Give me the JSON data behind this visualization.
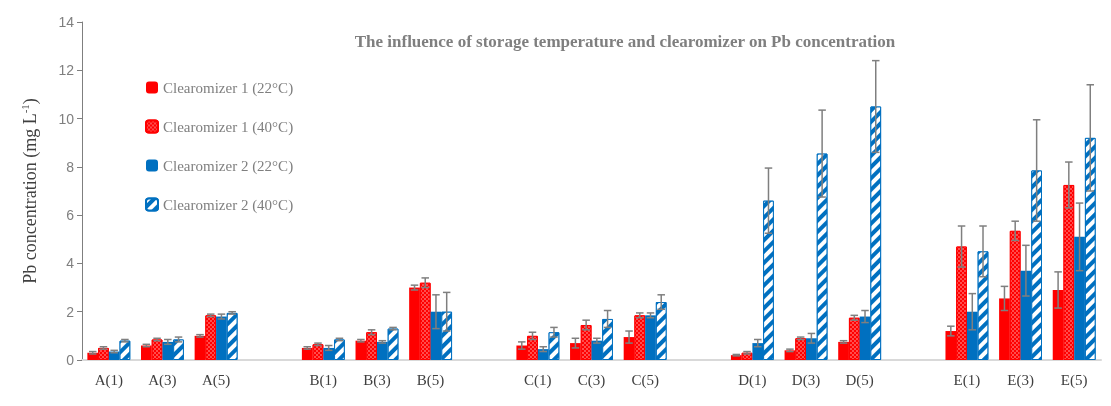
{
  "chart_data": {
    "type": "bar",
    "title": "The influence of storage temperature and clearomizer on Pb concentration",
    "ylabel": "Pb concentration (mg L$^{-1}$)",
    "categories": [
      "A(1)",
      "A(3)",
      "A(5)",
      null,
      "B(1)",
      "B(3)",
      "B(5)",
      null,
      "C(1)",
      "C(3)",
      "C(5)",
      null,
      "D(1)",
      "D(3)",
      "D(5)",
      null,
      "E(1)",
      "E(3)",
      "E(5)"
    ],
    "ylim": [
      0,
      14
    ],
    "yticks": [
      0,
      2,
      4,
      6,
      8,
      10,
      12,
      14
    ],
    "grid": false,
    "legend": "top left",
    "series": [
      {
        "name": "Clearomizer 1 (22°C)",
        "color": "#ff0000",
        "values": [
          0.3,
          0.6,
          1.0,
          null,
          0.5,
          0.8,
          3.0,
          null,
          0.6,
          0.7,
          0.95,
          null,
          0.2,
          0.4,
          0.75,
          null,
          1.2,
          2.55,
          2.9
        ],
        "errors": [
          0.05,
          0.05,
          0.05,
          null,
          0.05,
          0.05,
          0.1,
          null,
          0.15,
          0.2,
          0.25,
          null,
          0.03,
          0.05,
          0.05,
          null,
          0.2,
          0.5,
          0.75
        ]
      },
      {
        "name": "Clearomizer 1 (40°C)",
        "color": "#ff0000",
        "values": [
          0.5,
          0.85,
          1.85,
          null,
          0.65,
          1.15,
          3.2,
          null,
          1.0,
          1.45,
          1.85,
          null,
          0.3,
          0.9,
          1.75,
          null,
          4.7,
          5.35,
          7.25
        ],
        "errors": [
          0.05,
          0.05,
          0.05,
          null,
          0.05,
          0.1,
          0.2,
          null,
          0.15,
          0.2,
          0.1,
          null,
          0.05,
          0.05,
          0.1,
          null,
          0.85,
          0.4,
          0.95
        ]
      },
      {
        "name": "Clearomizer 2 (22°C)",
        "color": "#0070c0",
        "values": [
          0.35,
          0.75,
          1.8,
          null,
          0.5,
          0.75,
          2.0,
          null,
          0.45,
          0.8,
          1.85,
          null,
          0.7,
          0.9,
          1.8,
          null,
          2.0,
          3.7,
          5.1
        ],
        "errors": [
          0.05,
          0.1,
          0.1,
          null,
          0.1,
          0.05,
          0.7,
          null,
          0.1,
          0.1,
          0.1,
          null,
          0.15,
          0.2,
          0.25,
          null,
          0.75,
          1.05,
          1.4
        ]
      },
      {
        "name": "Clearomizer 2 (40°C)",
        "color": "#0070c0",
        "values": [
          0.8,
          0.85,
          1.95,
          null,
          0.85,
          1.3,
          2.0,
          null,
          1.15,
          1.7,
          2.4,
          null,
          6.6,
          8.55,
          10.5,
          null,
          4.5,
          7.85,
          9.2
        ],
        "errors": [
          0.05,
          0.1,
          0.05,
          null,
          0.05,
          0.05,
          0.8,
          null,
          0.2,
          0.35,
          0.3,
          null,
          1.35,
          1.8,
          1.9,
          null,
          1.05,
          2.1,
          2.2
        ]
      }
    ]
  }
}
